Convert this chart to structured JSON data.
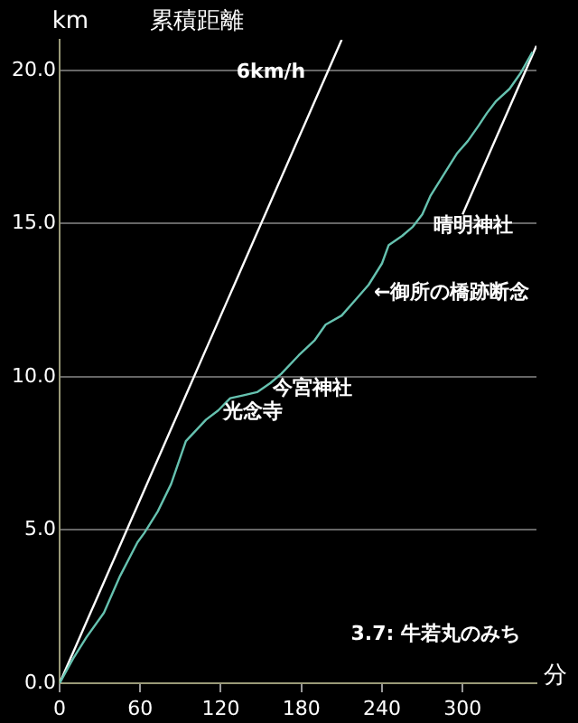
{
  "chart_data": {
    "type": "line",
    "title": "累積距離",
    "ylabel": "km",
    "xlabel": "分",
    "xlim": [
      0,
      355
    ],
    "xticks": [
      0,
      60,
      120,
      180,
      240,
      300
    ],
    "ylim": [
      0,
      21
    ],
    "yticks": [
      {
        "value": 0,
        "label": "0.0"
      },
      {
        "value": 5,
        "label": "5.0"
      },
      {
        "value": 10,
        "label": "10.0"
      },
      {
        "value": 15,
        "label": "15.0"
      },
      {
        "value": 20,
        "label": "20.0"
      }
    ],
    "grid": "y",
    "legend": false,
    "marker": "none",
    "line_style": "solid",
    "series": [
      {
        "color": "#66c2b0",
        "x": [
          0,
          10,
          20,
          33,
          45,
          58,
          63,
          73,
          83,
          94,
          109,
          118,
          127,
          137,
          147,
          157,
          165,
          178,
          190,
          198,
          210,
          220,
          230,
          240,
          245,
          255,
          263,
          270,
          276,
          286,
          296,
          304,
          312,
          318,
          325,
          335,
          343,
          352
        ],
        "values": [
          0,
          0.8,
          1.5,
          2.3,
          3.5,
          4.6,
          4.9,
          5.6,
          6.5,
          7.9,
          8.6,
          8.9,
          9.3,
          9.4,
          9.5,
          9.8,
          10.1,
          10.7,
          11.2,
          11.7,
          12.0,
          12.5,
          13.0,
          13.7,
          14.3,
          14.6,
          14.9,
          15.3,
          15.9,
          16.6,
          17.3,
          17.7,
          18.2,
          18.6,
          19.0,
          19.4,
          19.9,
          20.6
        ]
      },
      {
        "color": "#ffffff",
        "x": [
          0,
          210
        ],
        "values": [
          0,
          21
        ]
      },
      {
        "color": "#ffffff",
        "x": [
          300,
          355
        ],
        "values": [
          15.3,
          20.8
        ]
      }
    ],
    "annotations": [
      "6km/h",
      "光念寺",
      "今宮神社",
      "←御所の橋跡断念",
      "晴明神社",
      "3.7: 牛若丸のみち"
    ]
  }
}
